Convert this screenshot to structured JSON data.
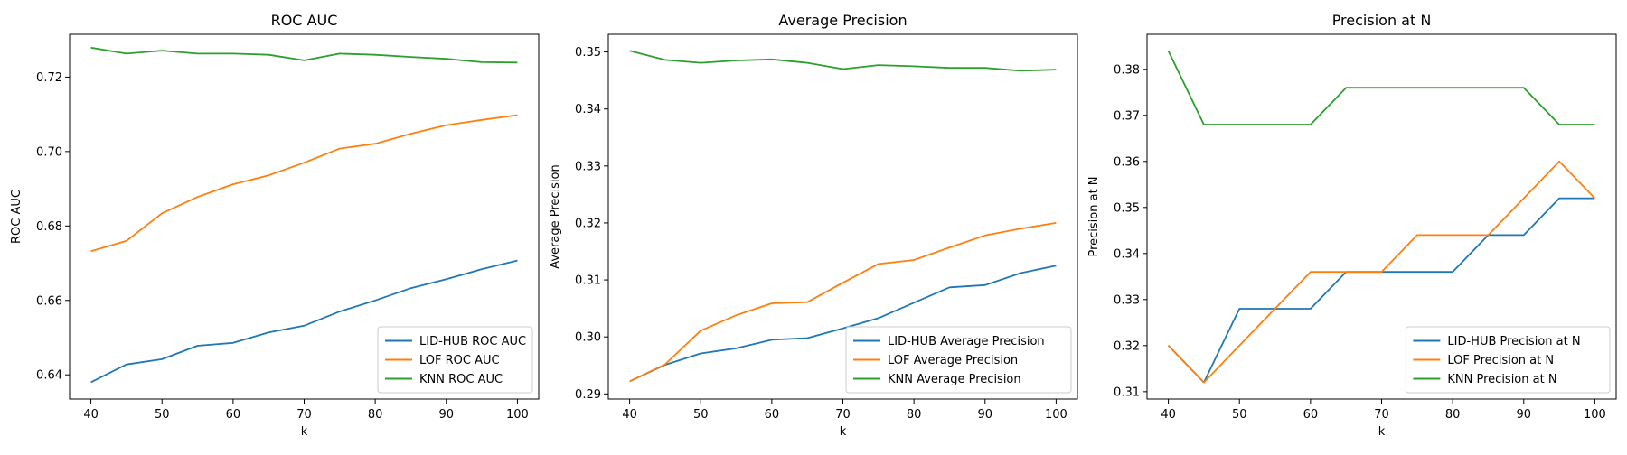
{
  "colors": {
    "blue": "#1f77b4",
    "orange": "#ff7f0e",
    "green": "#2ca02c"
  },
  "chart_data": [
    {
      "type": "line",
      "title": "ROC AUC",
      "xlabel": "k",
      "ylabel": "ROC AUC",
      "xlim": [
        37,
        103
      ],
      "ylim": [
        0.6335,
        0.7315
      ],
      "xticks": [
        40,
        50,
        60,
        70,
        80,
        90,
        100
      ],
      "yticks": [
        0.64,
        0.66,
        0.68,
        0.7,
        0.72
      ],
      "ytick_labels": [
        "0.64",
        "0.66",
        "0.68",
        "0.70",
        "0.72"
      ],
      "grid": false,
      "legend_position": "lower-right",
      "x": [
        40,
        45,
        50,
        55,
        60,
        65,
        70,
        75,
        80,
        85,
        90,
        95,
        100
      ],
      "series": [
        {
          "name": "LID-HUB ROC AUC",
          "color": "blue",
          "values": [
            0.638,
            0.6428,
            0.6442,
            0.6478,
            0.6486,
            0.6514,
            0.6532,
            0.657,
            0.66,
            0.6633,
            0.6657,
            0.6684,
            0.6707
          ]
        },
        {
          "name": "LOF ROC AUC",
          "color": "orange",
          "values": [
            0.6732,
            0.676,
            0.6834,
            0.6878,
            0.6912,
            0.6936,
            0.697,
            0.7008,
            0.7021,
            0.7048,
            0.7071,
            0.7085,
            0.7098
          ]
        },
        {
          "name": "KNN ROC AUC",
          "color": "green",
          "values": [
            0.7279,
            0.7263,
            0.7271,
            0.7263,
            0.7263,
            0.726,
            0.7245,
            0.7263,
            0.726,
            0.7254,
            0.7249,
            0.724,
            0.7239
          ]
        }
      ]
    },
    {
      "type": "line",
      "title": "Average Precision",
      "xlabel": "k",
      "ylabel": "Average Precision",
      "xlim": [
        37,
        103
      ],
      "ylim": [
        0.2891,
        0.3531
      ],
      "xticks": [
        40,
        50,
        60,
        70,
        80,
        90,
        100
      ],
      "yticks": [
        0.29,
        0.3,
        0.31,
        0.32,
        0.33,
        0.34,
        0.35
      ],
      "ytick_labels": [
        "0.29",
        "0.30",
        "0.31",
        "0.32",
        "0.33",
        "0.34",
        "0.35"
      ],
      "grid": false,
      "legend_position": "lower-right",
      "x": [
        40,
        45,
        50,
        55,
        60,
        65,
        70,
        75,
        80,
        85,
        90,
        95,
        100
      ],
      "series": [
        {
          "name": "LID-HUB Average Precision",
          "color": "blue",
          "values": [
            0.2922,
            0.2951,
            0.2971,
            0.298,
            0.2995,
            0.2998,
            0.3015,
            0.3033,
            0.306,
            0.3087,
            0.3091,
            0.3112,
            0.3125
          ]
        },
        {
          "name": "LOF Average Precision",
          "color": "orange",
          "values": [
            0.2922,
            0.2952,
            0.3011,
            0.3038,
            0.3059,
            0.3061,
            0.3095,
            0.3128,
            0.3135,
            0.3157,
            0.3178,
            0.319,
            0.32
          ]
        },
        {
          "name": "KNN Average Precision",
          "color": "green",
          "values": [
            0.3502,
            0.3486,
            0.3481,
            0.3485,
            0.3487,
            0.3481,
            0.347,
            0.3477,
            0.3475,
            0.3472,
            0.3472,
            0.3467,
            0.3469
          ]
        }
      ]
    },
    {
      "type": "line",
      "title": "Precision at N",
      "xlabel": "k",
      "ylabel": "Precision at N",
      "xlim": [
        37,
        103
      ],
      "ylim": [
        0.3084,
        0.3876
      ],
      "xticks": [
        40,
        50,
        60,
        70,
        80,
        90,
        100
      ],
      "yticks": [
        0.31,
        0.32,
        0.33,
        0.34,
        0.35,
        0.36,
        0.37,
        0.38
      ],
      "ytick_labels": [
        "0.31",
        "0.32",
        "0.33",
        "0.34",
        "0.35",
        "0.36",
        "0.37",
        "0.38"
      ],
      "grid": false,
      "legend_position": "lower-right",
      "x": [
        40,
        45,
        50,
        55,
        60,
        65,
        70,
        75,
        80,
        85,
        90,
        95,
        100
      ],
      "series": [
        {
          "name": "LID-HUB Precision at N",
          "color": "blue",
          "values": [
            0.32,
            0.312,
            0.328,
            0.328,
            0.328,
            0.336,
            0.336,
            0.336,
            0.336,
            0.344,
            0.344,
            0.352,
            0.352
          ]
        },
        {
          "name": "LOF Precision at N",
          "color": "orange",
          "values": [
            0.32,
            0.312,
            0.32,
            0.328,
            0.336,
            0.336,
            0.336,
            0.344,
            0.344,
            0.344,
            0.352,
            0.36,
            0.352
          ]
        },
        {
          "name": "KNN Precision at N",
          "color": "green",
          "values": [
            0.384,
            0.368,
            0.368,
            0.368,
            0.368,
            0.376,
            0.376,
            0.376,
            0.376,
            0.376,
            0.376,
            0.368,
            0.368
          ]
        }
      ]
    }
  ]
}
